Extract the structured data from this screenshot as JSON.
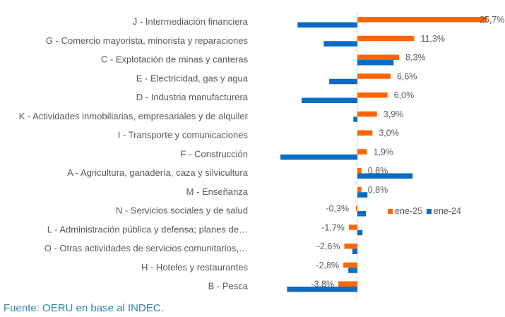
{
  "chart_data": {
    "type": "bar",
    "orientation": "horizontal",
    "title": "",
    "xlabel": "",
    "ylabel": "",
    "xlim": [
      -16,
      26
    ],
    "grid": false,
    "legend_position": "right",
    "categories": [
      "J - Intermediación financiera",
      "G - Comercio mayorista, minorista y reparaciones",
      "C - Explotación de minas y canteras",
      "E - Electricidad, gas y agua",
      "D - Industria manufacturera",
      "K - Actividades inmobiliarias, empresariales y de alquiler",
      "I - Transporte y comunicaciones",
      "F - Construcción",
      "A -  Agricultura, ganadería, caza y silvicultura",
      "M - Enseñanza",
      "N - Servicios sociales y de salud",
      "L - Administración pública y defensa; planes de…",
      "O - Otras actividades de servicios comunitarios,…",
      "H - Hoteles y restaurantes",
      "B - Pesca"
    ],
    "series": [
      {
        "name": "ene-25",
        "color": "#ff6600",
        "values": [
          25.7,
          11.3,
          8.3,
          6.6,
          6.0,
          3.9,
          3.0,
          1.9,
          0.8,
          0.8,
          -0.3,
          -1.7,
          -2.6,
          -2.8,
          -3.8
        ],
        "labels": [
          "25,7%",
          "11,3%",
          "8,3%",
          "6,6%",
          "6,0%",
          "3,9%",
          "3,0%",
          "1,9%",
          "0,8%",
          "0,8%",
          "-0,3%",
          "-1,7%",
          "-2,6%",
          "-2,8%",
          "-3,8%"
        ]
      },
      {
        "name": "ene-24",
        "color": "#0a6cc2",
        "values": [
          -11.9,
          -6.7,
          7.2,
          -5.6,
          -11.1,
          -0.8,
          0.0,
          -15.3,
          11.0,
          2.0,
          1.7,
          1.0,
          -1.0,
          -1.8,
          -14.0
        ]
      }
    ]
  },
  "source": "Fuente: OERU en base al INDEC."
}
